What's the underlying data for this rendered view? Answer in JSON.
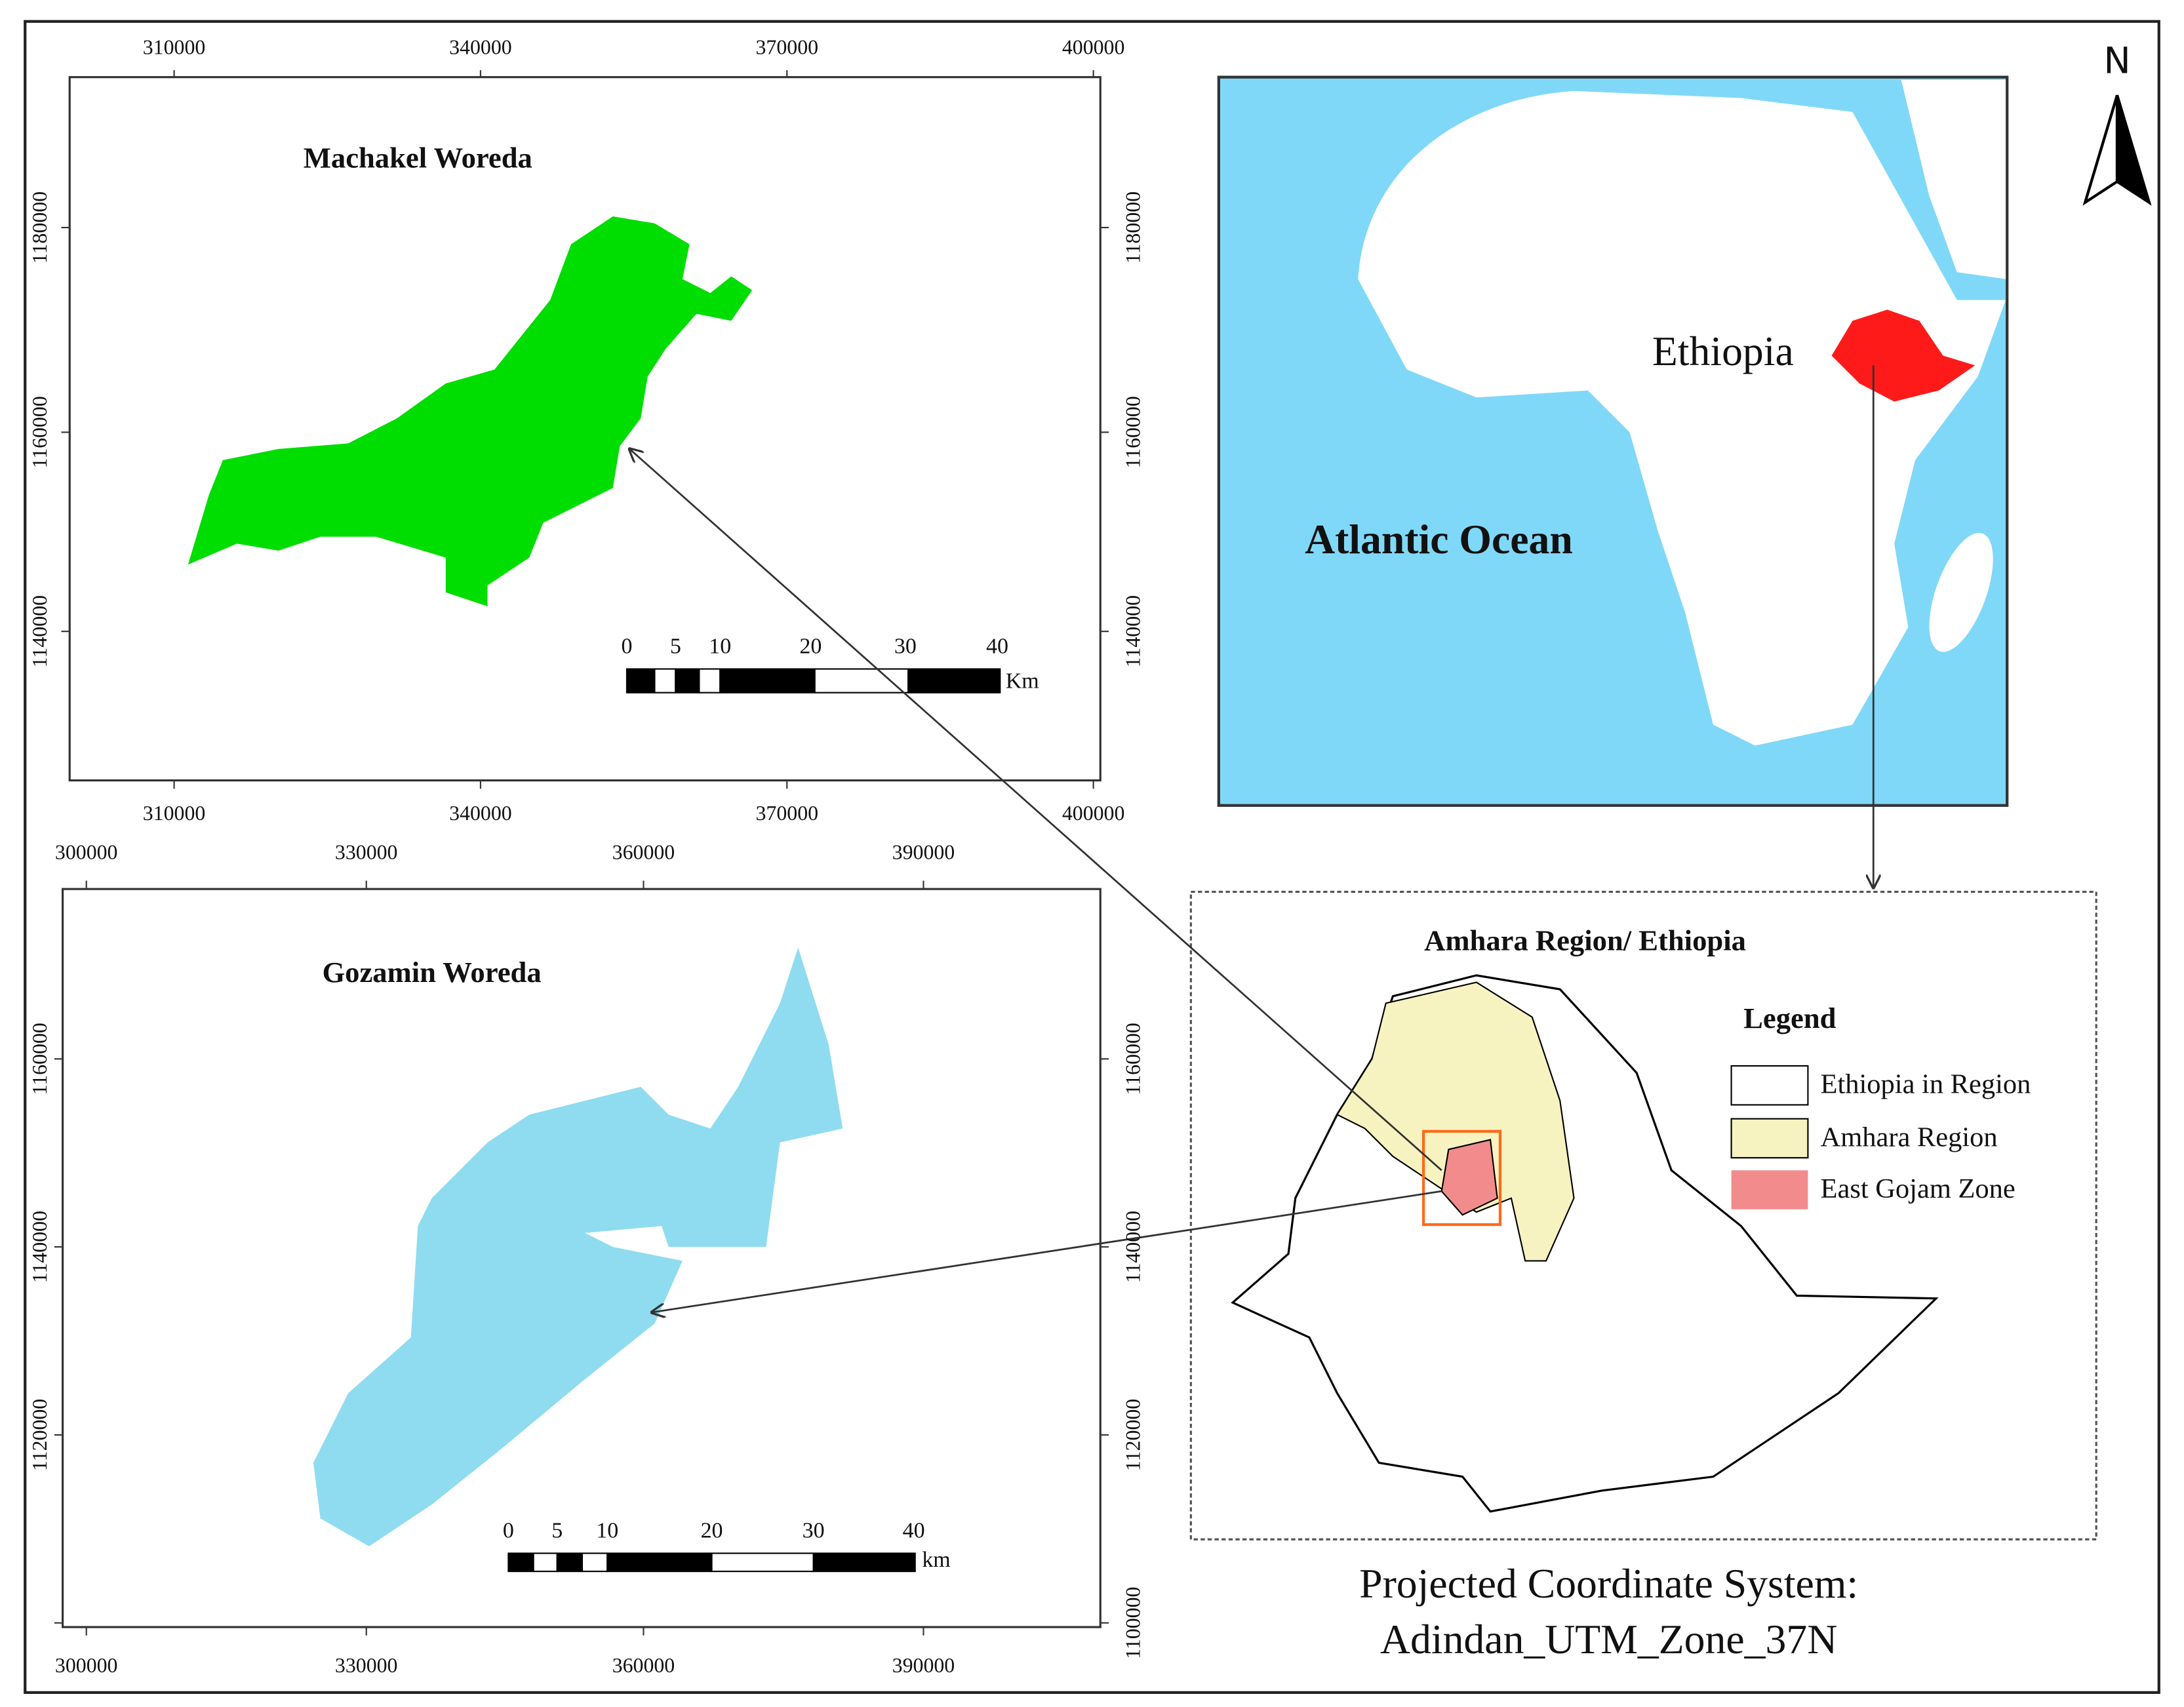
{
  "north": "N",
  "machakel": {
    "title": "Machakel Woreda",
    "x_ticks": [
      "310000",
      "340000",
      "370000",
      "400000"
    ],
    "y_ticks": [
      "1180000",
      "1160000",
      "1140000"
    ],
    "scale_labels": [
      "0",
      "5",
      "10",
      "20",
      "30",
      "40"
    ],
    "scale_unit": "Km"
  },
  "gozamin": {
    "title": "Gozamin Woreda",
    "x_ticks": [
      "300000",
      "330000",
      "360000",
      "390000"
    ],
    "y_ticks": [
      "1160000",
      "1140000",
      "1120000",
      "1100000"
    ],
    "scale_labels": [
      "0",
      "5",
      "10",
      "20",
      "30",
      "40"
    ],
    "scale_unit": "km"
  },
  "locator": {
    "country": "Ethiopia",
    "ocean": "Atlantic Ocean"
  },
  "amhara": {
    "title": "Amhara Region/ Ethiopia",
    "legend": {
      "title": "Legend",
      "items": [
        "Ethiopia in Region",
        "Amhara Region",
        "East Gojam Zone"
      ]
    }
  },
  "projection": [
    "Projected Coordinate System:",
    "Adindan_UTM_Zone_37N"
  ]
}
